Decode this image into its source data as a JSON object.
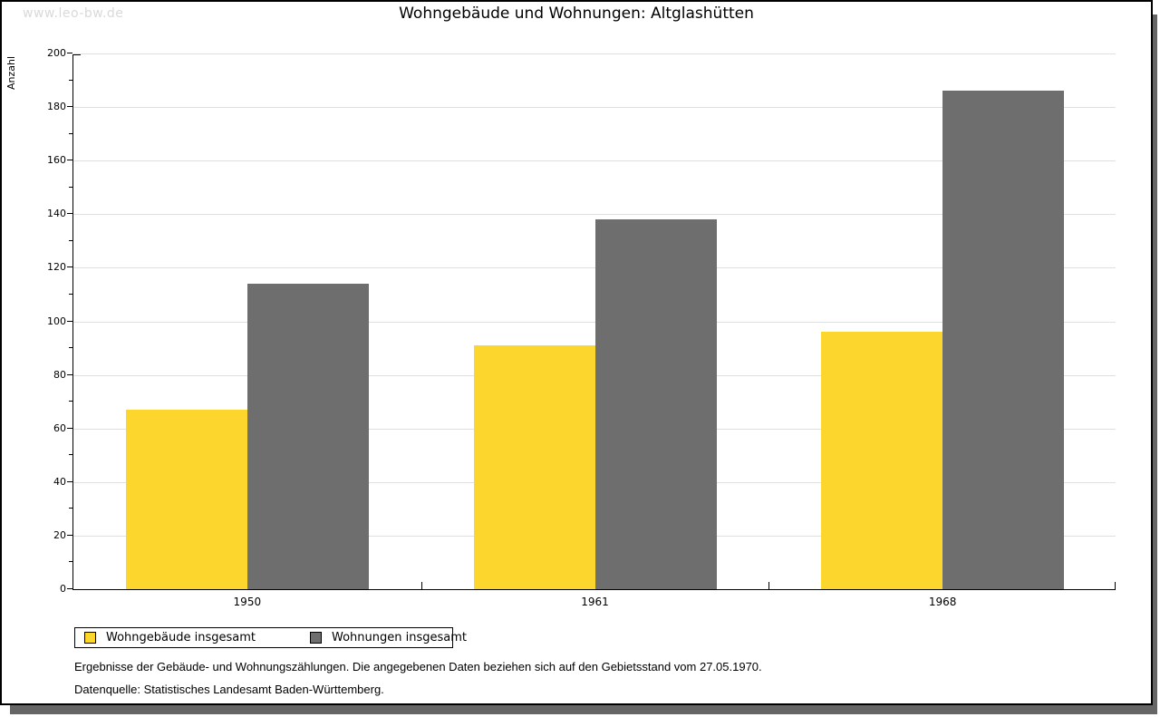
{
  "watermark": "www.leo-bw.de",
  "title": "Wohngebäude und Wohnungen: Altglashütten",
  "chart_data": {
    "type": "bar",
    "title": "Wohngebäude und Wohnungen: Altglashütten",
    "categories": [
      "1950",
      "1961",
      "1968"
    ],
    "series": [
      {
        "name": "Wohngebäude insgesamt",
        "color": "#FCD52D",
        "values": [
          67,
          91,
          96
        ]
      },
      {
        "name": "Wohnungen insgesamt",
        "color": "#6E6E6E",
        "values": [
          114,
          138,
          186
        ]
      }
    ],
    "xlabel": "",
    "ylabel": "Anzahl",
    "ylim": [
      0,
      200
    ],
    "ytick_step": 20,
    "yminor_step": 10,
    "grid": true,
    "gridline_color": "#e0e0e0",
    "legend_position": "bottom-left"
  },
  "footnotes": [
    "Ergebnisse der Gebäude- und Wohnungszählungen. Die angegebenen Daten beziehen sich auf den Gebietsstand vom 27.05.1970.",
    "Datenquelle: Statistisches Landesamt Baden-Württemberg."
  ]
}
